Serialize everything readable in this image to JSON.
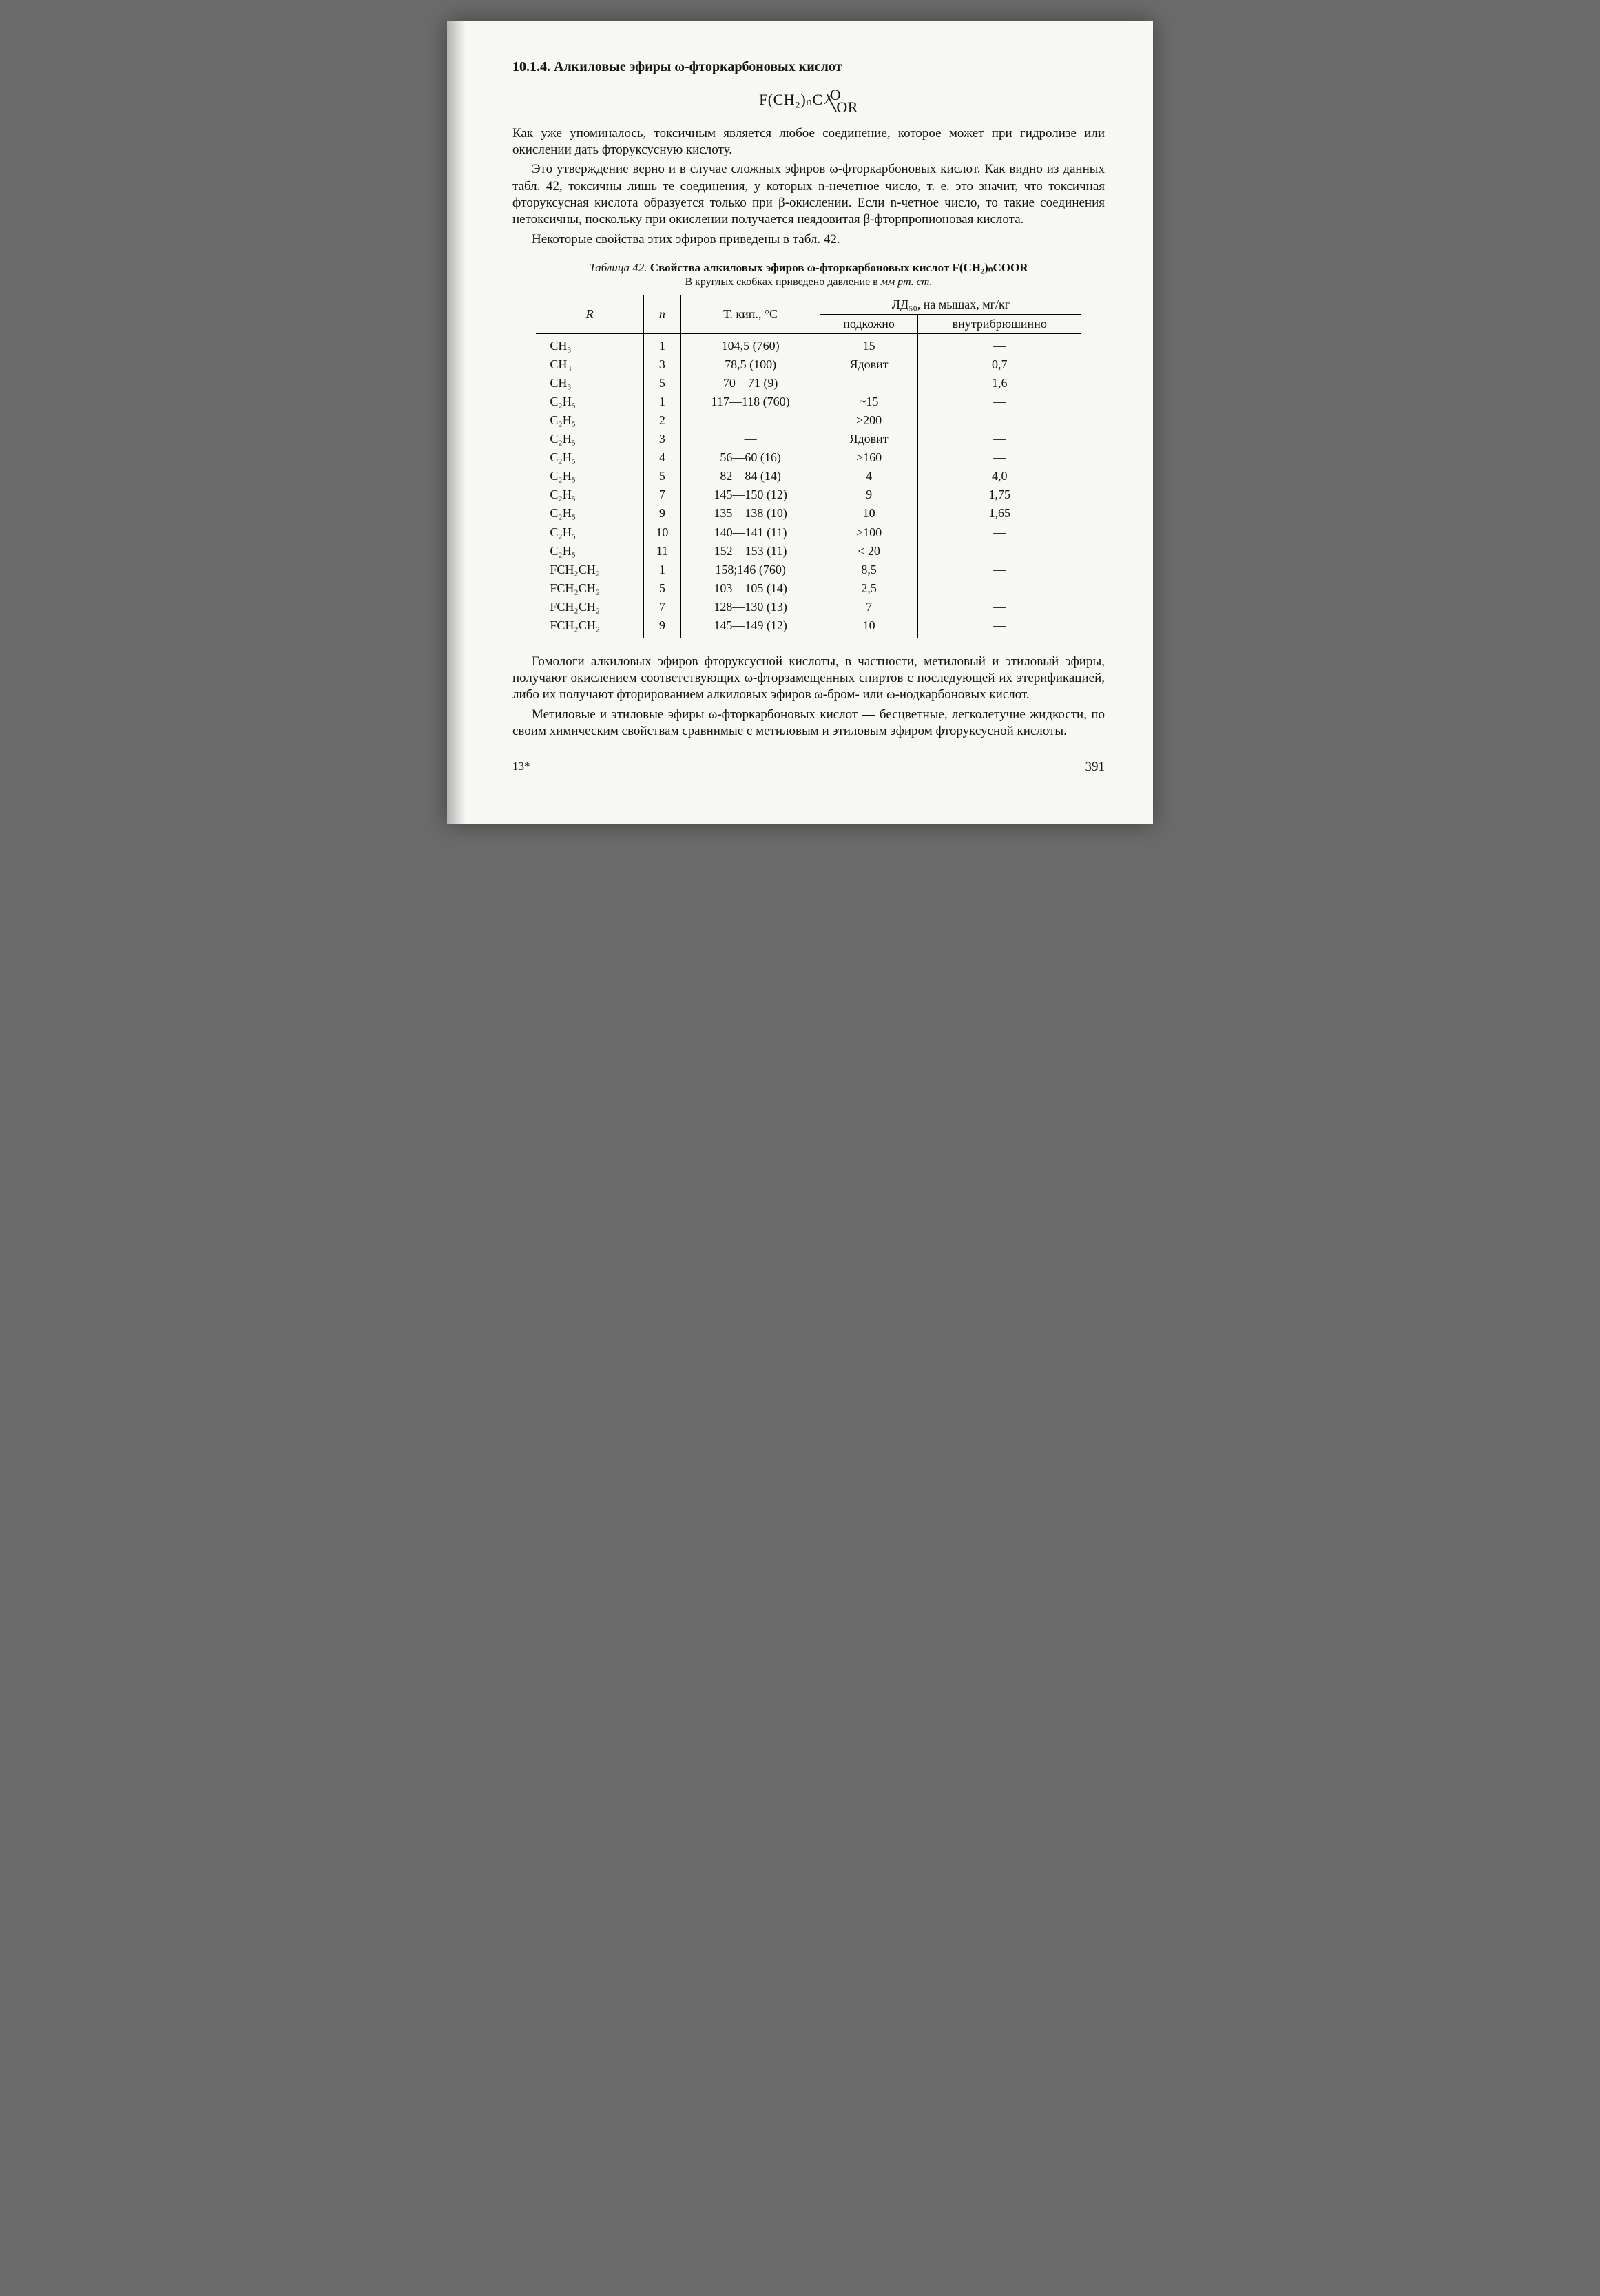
{
  "heading": "10.1.4. Алкиловые эфиры ω-фторкарбоновых кислот",
  "formula": {
    "left": "F(CH₂)ₙC",
    "top": "O",
    "bottom": "OR"
  },
  "paragraphs": {
    "p1": "Как уже упоминалось, токсичным является любое соединение, которое может при гидролизе или окислении дать фторуксусную кислоту.",
    "p2": "Это утверждение верно и в случае сложных эфиров ω-фторкарбоновых кислот. Как видно из данных табл. 42, токсичны лишь те соединения, у которых n-нечетное число, т. е. это значит, что токсичная фторуксусная кислота образуется только при β-окислении. Если n-четное число, то такие соединения нетоксичны, поскольку при окислении получается неядовитая β-фторпропионовая кислота.",
    "p3": "Некоторые свойства этих эфиров приведены в табл. 42.",
    "p4": "Гомологи алкиловых эфиров фторуксусной кислоты, в частности, метиловый и этиловый эфиры, получают окислением соответствующих ω-фторзамещенных спиртов с последующей их этерификацией, либо их получают фторированием алкиловых эфиров ω-бром- или ω-иодкарбоновых кислот.",
    "p5": "Метиловые и этиловые эфиры ω-фторкарбоновых кислот — бесцветные, легколетучие жидкости, по своим химическим свойствам сравнимые с метиловым и этиловым эфиром фторуксусной кислоты."
  },
  "table": {
    "title_prefix": "Таблица 42. ",
    "title_main": "Свойства алкиловых эфиров ω-фторкарбоновых кислот F(CH₂)ₙCOOR",
    "subtitle_prefix": "В круглых скобках приведено давление в ",
    "subtitle_em": "мм рт. ст.",
    "head_R": "R",
    "head_n": "n",
    "head_bp": "Т. кип., °С",
    "head_ld50": "ЛД₅₀, на мышах, мг/кг",
    "head_subq": "подкожно",
    "head_ip": "внутрибрюшинно",
    "rows": [
      {
        "R": "CH₃",
        "n": "1",
        "bp": "104,5 (760)",
        "sq": "15",
        "ip": "—"
      },
      {
        "R": "CH₃",
        "n": "3",
        "bp": "78,5 (100)",
        "sq": "Ядовит",
        "ip": "0,7"
      },
      {
        "R": "CH₃",
        "n": "5",
        "bp": "70—71 (9)",
        "sq": "—",
        "ip": "1,6"
      },
      {
        "R": "C₂H₅",
        "n": "1",
        "bp": "117—118 (760)",
        "sq": "~15",
        "ip": "—"
      },
      {
        "R": "C₂H₅",
        "n": "2",
        "bp": "—",
        "sq": ">200",
        "ip": "—"
      },
      {
        "R": "C₂H₅",
        "n": "3",
        "bp": "—",
        "sq": "Ядовит",
        "ip": "—"
      },
      {
        "R": "C₂H₅",
        "n": "4",
        "bp": "56—60 (16)",
        "sq": ">160",
        "ip": "—"
      },
      {
        "R": "C₂H₅",
        "n": "5",
        "bp": "82—84 (14)",
        "sq": "4",
        "ip": "4,0"
      },
      {
        "R": "C₂H₅",
        "n": "7",
        "bp": "145—150 (12)",
        "sq": "9",
        "ip": "1,75"
      },
      {
        "R": "C₂H₅",
        "n": "9",
        "bp": "135—138 (10)",
        "sq": "10",
        "ip": "1,65"
      },
      {
        "R": "C₂H₅",
        "n": "10",
        "bp": "140—141 (11)",
        "sq": ">100",
        "ip": "—"
      },
      {
        "R": "C₂H₅",
        "n": "11",
        "bp": "152—153 (11)",
        "sq": "< 20",
        "ip": "—"
      },
      {
        "R": "FCH₂CH₂",
        "n": "1",
        "bp": "158;146 (760)",
        "sq": "8,5",
        "ip": "—"
      },
      {
        "R": "FCH₂CH₂",
        "n": "5",
        "bp": "103—105 (14)",
        "sq": "2,5",
        "ip": "—"
      },
      {
        "R": "FCH₂CH₂",
        "n": "7",
        "bp": "128—130 (13)",
        "sq": "7",
        "ip": "—"
      },
      {
        "R": "FCH₂CH₂",
        "n": "9",
        "bp": "145—149 (12)",
        "sq": "10",
        "ip": "—"
      }
    ]
  },
  "printers_mark": "13*",
  "page_number": "391"
}
